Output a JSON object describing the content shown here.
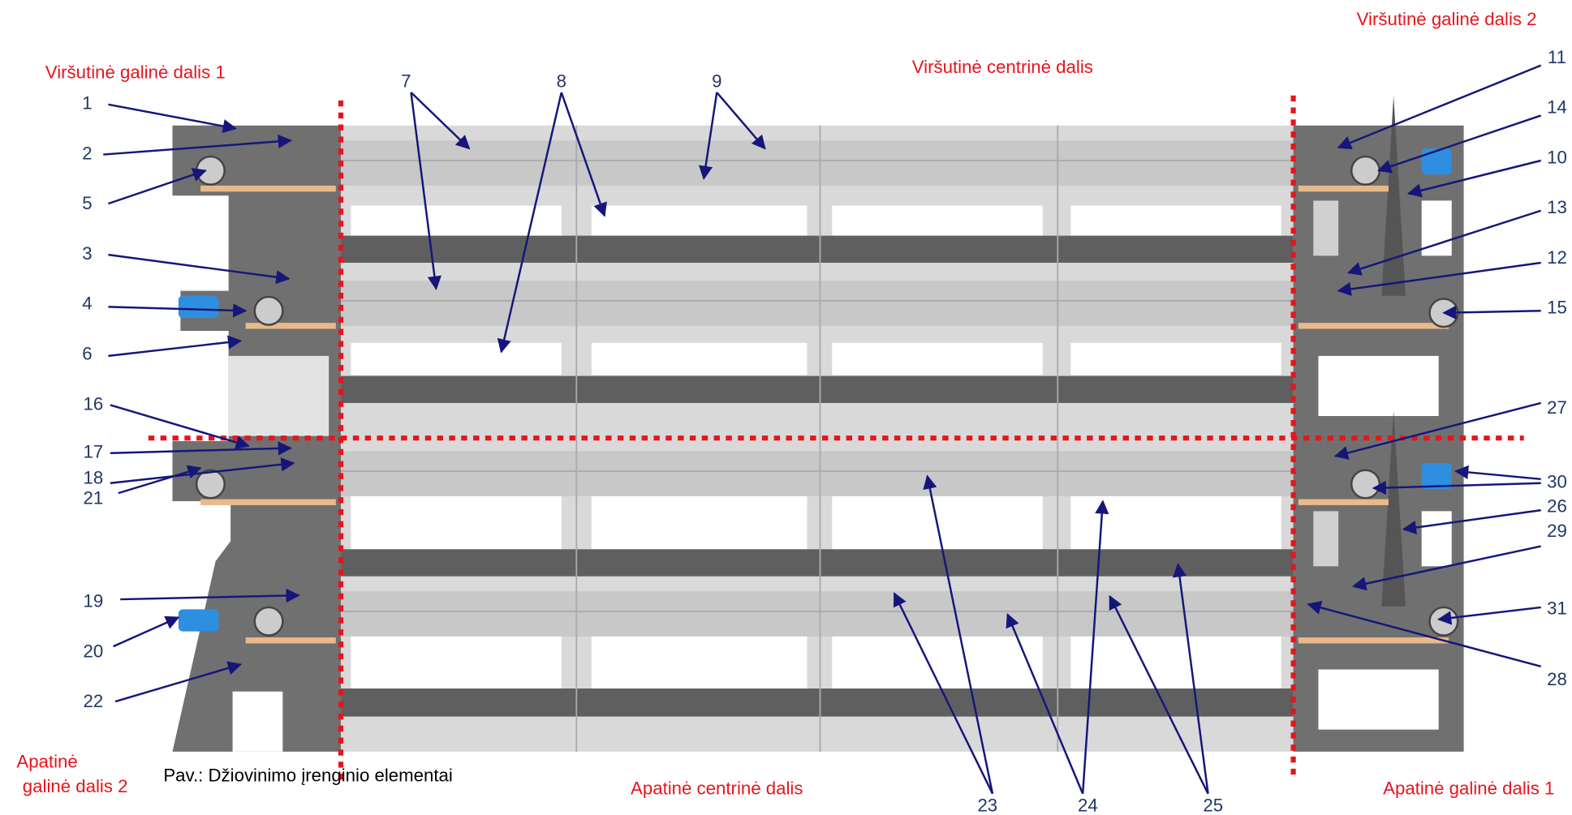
{
  "sections": [
    {
      "lines": [
        "Viršutinė galinė dalis 1"
      ]
    },
    {
      "lines": [
        "Viršutinė galinė dalis 2"
      ]
    },
    {
      "lines": [
        "Viršutinė centrinė dalis"
      ]
    },
    {
      "lines": [
        "Apatinė",
        "galinė dalis 2"
      ]
    },
    {
      "lines": [
        "Apatinė centrinė dalis"
      ]
    },
    {
      "lines": [
        "Apatinė galinė dalis 1"
      ]
    }
  ],
  "callouts": [
    {
      "label": "1"
    },
    {
      "label": "2"
    },
    {
      "label": "5"
    },
    {
      "label": "3"
    },
    {
      "label": "4"
    },
    {
      "label": "6"
    },
    {
      "label": "16"
    },
    {
      "label": "17"
    },
    {
      "label": "18"
    },
    {
      "label": "21"
    },
    {
      "label": "19"
    },
    {
      "label": "20"
    },
    {
      "label": "22"
    },
    {
      "label": "7"
    },
    {
      "label": "8"
    },
    {
      "label": "9"
    },
    {
      "label": "11"
    },
    {
      "label": "14"
    },
    {
      "label": "10"
    },
    {
      "label": "13"
    },
    {
      "label": "12"
    },
    {
      "label": "15"
    },
    {
      "label": "27"
    },
    {
      "label": "30"
    },
    {
      "label": "26"
    },
    {
      "label": "29"
    },
    {
      "label": "31"
    },
    {
      "label": "28"
    },
    {
      "label": "23"
    },
    {
      "label": "24"
    },
    {
      "label": "25"
    }
  ],
  "caption": "Pav.: Džiovinimo įrenginio elementai"
}
